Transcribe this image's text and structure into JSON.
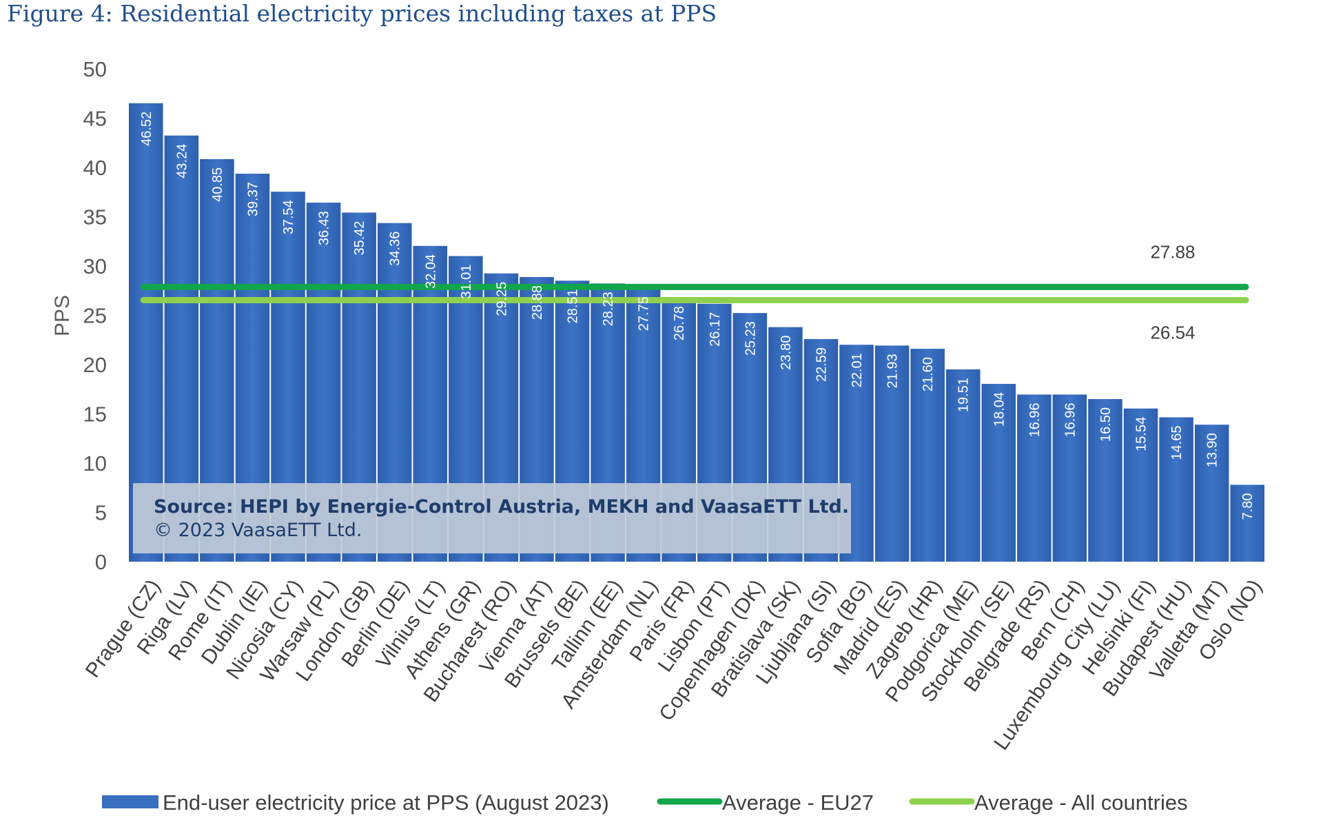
{
  "figure_title": "Figure 4: Residential electricity prices including taxes at PPS",
  "chart_data": {
    "type": "bar",
    "title": "Figure 4: Residential electricity prices including taxes at PPS",
    "ylabel": "PPS",
    "xlabel": "",
    "ylim": [
      0,
      50
    ],
    "yticks": [
      "0",
      "5",
      "10",
      "15",
      "20",
      "25",
      "30",
      "35",
      "40",
      "45",
      "50"
    ],
    "categories": [
      "Prague (CZ)",
      "Riga (LV)",
      "Rome (IT)",
      "Dublin (IE)",
      "Nicosia (CY)",
      "Warsaw (PL)",
      "London (GB)",
      "Berlin (DE)",
      "Vilnius (LT)",
      "Athens (GR)",
      "Bucharest (RO)",
      "Vienna (AT)",
      "Brussels (BE)",
      "Tallinn (EE)",
      "Amsterdam (NL)",
      "Paris (FR)",
      "Lisbon (PT)",
      "Copenhagen (DK)",
      "Bratislava (SK)",
      "Ljubljana (SI)",
      "Sofia (BG)",
      "Madrid (ES)",
      "Zagreb (HR)",
      "Podgorica (ME)",
      "Stockholm (SE)",
      "Belgrade (RS)",
      "Bern (CH)",
      "Luxembourg City (LU)",
      "Helsinki (FI)",
      "Budapest (HU)",
      "Valletta (MT)",
      "Oslo (NO)"
    ],
    "series": [
      {
        "name": "End-user electricity price at PPS (August 2023)",
        "color": "#3a6fc0",
        "values": [
          46.52,
          43.24,
          40.85,
          39.37,
          37.54,
          36.43,
          35.42,
          34.36,
          32.04,
          31.01,
          29.25,
          28.88,
          28.51,
          28.23,
          27.75,
          26.78,
          26.17,
          25.23,
          23.8,
          22.59,
          22.01,
          21.93,
          21.6,
          19.51,
          18.04,
          16.96,
          16.96,
          16.5,
          15.54,
          14.65,
          13.9,
          7.8
        ],
        "value_labels": [
          "46.52",
          "43.24",
          "40.85",
          "39.37",
          "37.54",
          "36.43",
          "35.42",
          "34.36",
          "32.04",
          "31.01",
          "29.25",
          "28.88",
          "28.51",
          "28.23",
          "27.75",
          "26.78",
          "26.17",
          "25.23",
          "23.80",
          "22.59",
          "22.01",
          "21.93",
          "21.60",
          "19.51",
          "18.04",
          "16.96",
          "16.96",
          "16.50",
          "15.54",
          "14.65",
          "13.90",
          "7.80"
        ]
      }
    ],
    "reference_lines": [
      {
        "name": "Average - EU27",
        "value": 27.88,
        "label": "27.88",
        "color": "#12a64a"
      },
      {
        "name": "Average - All countries",
        "value": 26.54,
        "label": "26.54",
        "color": "#8fd14f"
      }
    ],
    "legend_position": "bottom",
    "grid": false,
    "source_line1": "Source: HEPI by Energie-Control Austria, MEKH and VaasaETT Ltd.",
    "source_line2": "© 2023 VaasaETT Ltd."
  }
}
